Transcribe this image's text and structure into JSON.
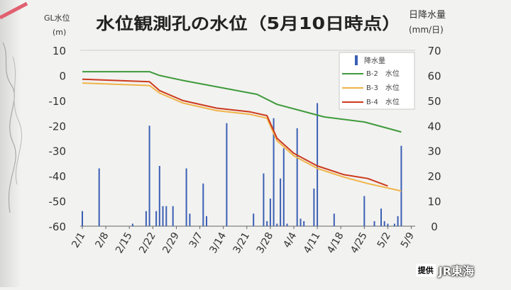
{
  "credit": {
    "label": "提供",
    "org": "JR東海"
  },
  "chart_data": {
    "type": "line",
    "title": "水位観測孔の水位（5月10日時点）",
    "y_left_label": "GL水位",
    "y_left_unit": "(m)",
    "y_right_label": "日降水量",
    "y_right_unit": "(mm/日)",
    "y_left_ticks": [
      "10",
      "0",
      "-10",
      "-20",
      "-30",
      "-40",
      "-50",
      "-60"
    ],
    "y_right_ticks": [
      "70",
      "60",
      "50",
      "40",
      "30",
      "20",
      "10",
      "0"
    ],
    "ylim_left": [
      -60,
      10
    ],
    "ylim_right": [
      0,
      70
    ],
    "x_ticks": [
      "2/1",
      "2/8",
      "2/15",
      "2/22",
      "2/29",
      "3/7",
      "3/14",
      "3/21",
      "3/28",
      "4/4",
      "4/11",
      "4/18",
      "4/25",
      "5/2",
      "5/9"
    ],
    "legend_position": "top-right",
    "colors": {
      "rain": "#3b5fb5",
      "b2": "#3f9a3c",
      "b3": "#f0b44a",
      "b4": "#cc3a1e"
    },
    "rain": {
      "name": "降水量",
      "days": [
        0,
        5,
        15,
        19,
        20,
        22,
        23,
        24,
        25,
        27,
        31,
        32,
        36,
        37,
        43,
        51,
        54,
        55,
        56,
        57,
        58,
        59,
        60,
        61,
        64,
        65,
        66,
        69,
        70,
        75,
        84,
        87,
        89,
        90,
        91,
        93,
        94,
        95
      ],
      "values": [
        6,
        23,
        1,
        6,
        40,
        6,
        24,
        8,
        8,
        8,
        23,
        5,
        17,
        4,
        41,
        5,
        21,
        2,
        11,
        43,
        1,
        19,
        31,
        1,
        39,
        3,
        2,
        15,
        49,
        5,
        12,
        2,
        7,
        2,
        1,
        1,
        4,
        32
      ]
    },
    "series": [
      {
        "name": "B-2　水位",
        "points": [
          [
            0,
            1.5
          ],
          [
            20,
            1.5
          ],
          [
            23,
            0
          ],
          [
            30,
            -2
          ],
          [
            40,
            -4.5
          ],
          [
            52,
            -7.5
          ],
          [
            58,
            -11.5
          ],
          [
            65,
            -14
          ],
          [
            72,
            -16.5
          ],
          [
            84,
            -18.5
          ],
          [
            95,
            -22.5
          ]
        ]
      },
      {
        "name": "B-3　水位",
        "points": [
          [
            0,
            -3
          ],
          [
            20,
            -4
          ],
          [
            23,
            -7
          ],
          [
            30,
            -11
          ],
          [
            40,
            -14
          ],
          [
            50,
            -15.5
          ],
          [
            55,
            -17
          ],
          [
            58,
            -26
          ],
          [
            63,
            -32
          ],
          [
            70,
            -37
          ],
          [
            78,
            -40.5
          ],
          [
            85,
            -43
          ],
          [
            95,
            -46
          ]
        ]
      },
      {
        "name": "B-4　水位",
        "points": [
          [
            0,
            -1.5
          ],
          [
            20,
            -2.5
          ],
          [
            23,
            -6
          ],
          [
            30,
            -10
          ],
          [
            40,
            -13
          ],
          [
            50,
            -14.5
          ],
          [
            55,
            -16
          ],
          [
            58,
            -25
          ],
          [
            63,
            -31
          ],
          [
            70,
            -36
          ],
          [
            78,
            -39.5
          ],
          [
            85,
            -41
          ],
          [
            91,
            -44
          ]
        ]
      }
    ]
  }
}
